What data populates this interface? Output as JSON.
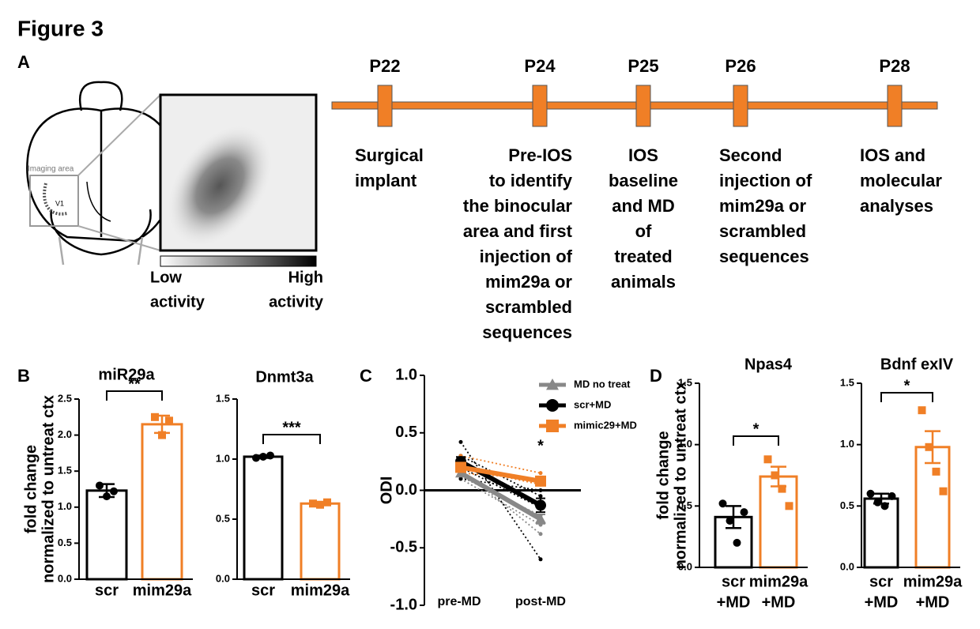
{
  "figure_title": "Figure 3",
  "panel_a": {
    "label": "A",
    "diagram": {
      "imaging_area": "Imaging area",
      "region": "V1",
      "low": [
        "Low",
        "activity"
      ],
      "high": [
        "High",
        "activity"
      ]
    },
    "timeline": [
      {
        "day": "P22",
        "text": [
          "Surgical",
          "implant"
        ]
      },
      {
        "day": "P24",
        "text": [
          "Pre-IOS",
          "to identify",
          "the binocular",
          "area and first",
          "injection of",
          "mim29a or",
          "scrambled",
          "sequences"
        ]
      },
      {
        "day": "P25",
        "text": [
          "IOS",
          "baseline",
          "and MD",
          "of",
          "treated",
          "animals"
        ]
      },
      {
        "day": "P26",
        "text": [
          "Second",
          "injection of",
          "mim29a or",
          "scrambled",
          "sequences"
        ]
      },
      {
        "day": "P28",
        "text": [
          "IOS and",
          "molecular",
          "analyses"
        ]
      }
    ]
  },
  "chart_data": [
    {
      "type": "bar",
      "panel_label": "B",
      "title": "miR29a",
      "ylabel": [
        "fold change",
        "normalized to untreat ctx"
      ],
      "categories": [
        [
          "scr"
        ],
        [
          "mim29a"
        ]
      ],
      "colors": [
        "#000000",
        "#f07f26"
      ],
      "values": [
        1.23,
        2.15
      ],
      "errors": [
        0.09,
        0.12
      ],
      "points": [
        [
          1.3,
          1.15,
          1.22
        ],
        [
          2.25,
          2.0,
          2.2
        ]
      ],
      "ylim": [
        0,
        2.5
      ],
      "yticks": [
        {
          "value": 0,
          "label": "0.0"
        },
        0.5,
        {
          "value": 1,
          "label": "1.0"
        },
        1.5,
        {
          "value": 2,
          "label": "2.0"
        },
        2.5
      ],
      "significance": "**"
    },
    {
      "type": "bar",
      "title": "Dnmt3a",
      "categories": [
        [
          "scr"
        ],
        [
          "mim29a"
        ]
      ],
      "colors": [
        "#000000",
        "#f07f26"
      ],
      "values": [
        1.02,
        0.63
      ],
      "errors": [
        0.01,
        0.01
      ],
      "points": [
        [
          1.01,
          1.02,
          1.03
        ],
        [
          0.63,
          0.62,
          0.64
        ]
      ],
      "ylim": [
        0,
        1.5
      ],
      "yticks": [
        {
          "value": 0,
          "label": "0.0"
        },
        0.5,
        {
          "value": 1,
          "label": "1.0"
        },
        1.5
      ],
      "significance": "***"
    },
    {
      "type": "line",
      "panel_label": "C",
      "ylabel": "ODI",
      "categories": [
        "pre-MD",
        "post-MD"
      ],
      "series": [
        {
          "name": "MD no treat",
          "color": "#888888",
          "marker": "triangle",
          "values": [
            0.15,
            -0.25
          ],
          "errors": [
            0.03,
            0.04
          ],
          "individuals": [
            [
              0.18,
              -0.38
            ],
            [
              0.12,
              -0.22
            ],
            [
              0.1,
              -0.3
            ]
          ]
        },
        {
          "name": "scr+MD",
          "color": "#000000",
          "marker": "circle",
          "values": [
            0.25,
            -0.13
          ],
          "errors": [
            0.04,
            0.06
          ],
          "individuals": [
            [
              0.42,
              -0.6
            ],
            [
              0.3,
              -0.05
            ],
            [
              0.2,
              -0.15
            ],
            [
              0.1,
              0.0
            ]
          ]
        },
        {
          "name": "mimic29+MD",
          "color": "#f07f26",
          "marker": "square",
          "values": [
            0.2,
            0.08
          ],
          "errors": [
            0.04,
            0.03
          ],
          "individuals": [
            [
              0.3,
              0.15
            ],
            [
              0.15,
              0.1
            ],
            [
              0.2,
              0.05
            ]
          ]
        }
      ],
      "ylim": [
        -1,
        1
      ],
      "yticks": [
        {
          "value": -1,
          "label": "-1.0"
        },
        -0.5,
        {
          "value": 0,
          "label": "0.0"
        },
        0.5,
        {
          "value": 1,
          "label": "1.0"
        }
      ],
      "annotation": "*"
    },
    {
      "type": "bar",
      "panel_label": "D",
      "title": "Npas4",
      "ylabel": [
        "fold change",
        "normalized to untreat ctx"
      ],
      "categories": [
        [
          "scr",
          "+MD"
        ],
        [
          "mim29a",
          "+MD"
        ]
      ],
      "colors": [
        "#000000",
        "#f07f26"
      ],
      "values": [
        0.41,
        0.74
      ],
      "errors": [
        0.09,
        0.08
      ],
      "points": [
        [
          0.52,
          0.38,
          0.2,
          0.45
        ],
        [
          0.88,
          0.75,
          0.64,
          0.5
        ]
      ],
      "ylim": [
        0,
        1.5
      ],
      "yticks": [
        {
          "value": 0,
          "label": "0.0"
        },
        0.5,
        {
          "value": 1,
          "label": "1.0"
        },
        1.5
      ],
      "significance": "*"
    },
    {
      "type": "bar",
      "title": "Bdnf exIV",
      "categories": [
        [
          "scr",
          "+MD"
        ],
        [
          "mim29a",
          "+MD"
        ]
      ],
      "colors": [
        "#000000",
        "#f07f26"
      ],
      "values": [
        0.56,
        0.98
      ],
      "errors": [
        0.04,
        0.13
      ],
      "points": [
        [
          0.6,
          0.53,
          0.5,
          0.58
        ],
        [
          1.28,
          0.98,
          0.78,
          0.62
        ]
      ],
      "ylim": [
        0,
        1.5
      ],
      "yticks": [
        {
          "value": 0,
          "label": "0.0"
        },
        0.5,
        {
          "value": 1,
          "label": "1.0"
        },
        1.5
      ],
      "significance": "*"
    }
  ]
}
